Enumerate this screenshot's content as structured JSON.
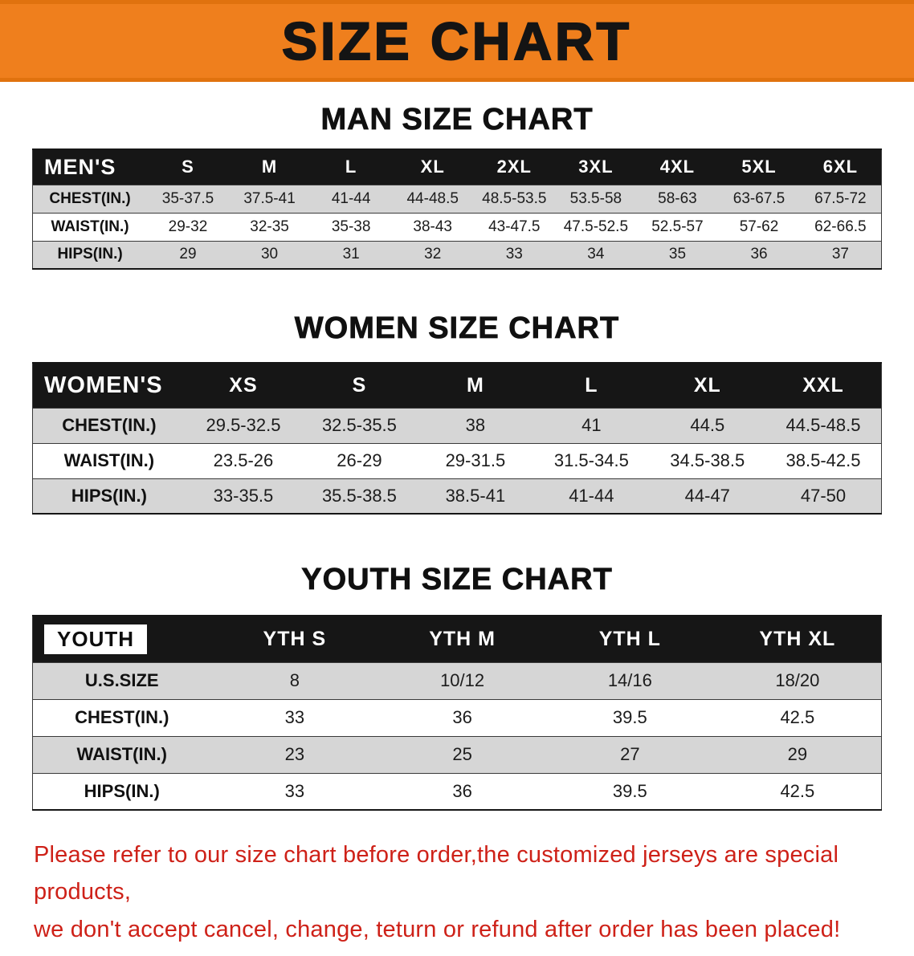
{
  "colors": {
    "accent_orange": "#ef7f1d",
    "banner_edge": "#e0720e",
    "header_black": "#161616",
    "stripe_gray": "#d6d6d6",
    "notice_red": "#ce2118"
  },
  "banner": {
    "title": "SIZE CHART"
  },
  "sections": {
    "men": {
      "heading": "MAN SIZE CHART",
      "table": {
        "header": [
          "MEN'S",
          "S",
          "M",
          "L",
          "XL",
          "2XL",
          "3XL",
          "4XL",
          "5XL",
          "6XL"
        ],
        "rows": [
          [
            "CHEST(IN.)",
            "35-37.5",
            "37.5-41",
            "41-44",
            "44-48.5",
            "48.5-53.5",
            "53.5-58",
            "58-63",
            "63-67.5",
            "67.5-72"
          ],
          [
            "WAIST(IN.)",
            "29-32",
            "32-35",
            "35-38",
            "38-43",
            "43-47.5",
            "47.5-52.5",
            "52.5-57",
            "57-62",
            "62-66.5"
          ],
          [
            "HIPS(IN.)",
            "29",
            "30",
            "31",
            "32",
            "33",
            "34",
            "35",
            "36",
            "37"
          ]
        ]
      }
    },
    "women": {
      "heading": "WOMEN SIZE CHART",
      "table": {
        "header": [
          "WOMEN'S",
          "XS",
          "S",
          "M",
          "L",
          "XL",
          "XXL"
        ],
        "rows": [
          [
            "CHEST(IN.)",
            "29.5-32.5",
            "32.5-35.5",
            "38",
            "41",
            "44.5",
            "44.5-48.5"
          ],
          [
            "WAIST(IN.)",
            "23.5-26",
            "26-29",
            "29-31.5",
            "31.5-34.5",
            "34.5-38.5",
            "38.5-42.5"
          ],
          [
            "HIPS(IN.)",
            "33-35.5",
            "35.5-38.5",
            "38.5-41",
            "41-44",
            "44-47",
            "47-50"
          ]
        ]
      }
    },
    "youth": {
      "heading": "YOUTH SIZE CHART",
      "table": {
        "header": [
          "YOUTH",
          "YTH S",
          "YTH M",
          "YTH L",
          "YTH XL"
        ],
        "rows": [
          [
            "U.S.SIZE",
            "8",
            "10/12",
            "14/16",
            "18/20"
          ],
          [
            "CHEST(IN.)",
            "33",
            "36",
            "39.5",
            "42.5"
          ],
          [
            "WAIST(IN.)",
            "23",
            "25",
            "27",
            "29"
          ],
          [
            "HIPS(IN.)",
            "33",
            "36",
            "39.5",
            "42.5"
          ]
        ]
      }
    }
  },
  "notice": {
    "line1": "Please refer to our size chart before order,the customized jerseys are special products,",
    "line2": "we don't accept cancel, change, teturn or refund after order has been placed!"
  }
}
